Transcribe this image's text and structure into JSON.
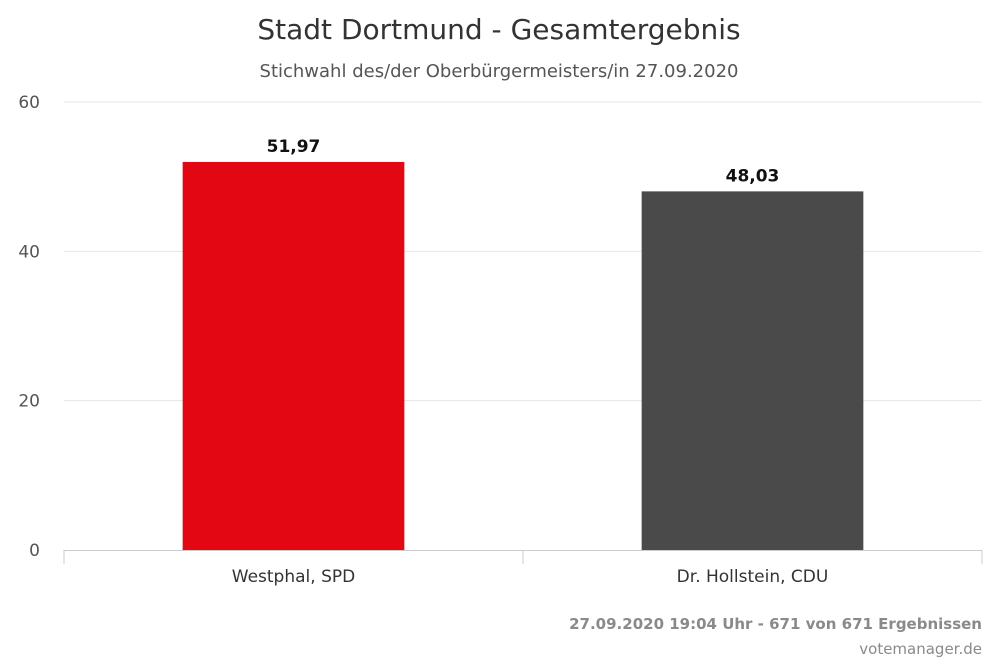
{
  "chart_data": {
    "type": "bar",
    "title": "Stadt Dortmund - Gesamtergebnis",
    "subtitle": "Stichwahl des/der Oberbürgermeisters/in 27.09.2020",
    "categories": [
      "Westphal, SPD",
      "Dr. Hollstein, CDU"
    ],
    "values": [
      51.97,
      48.03
    ],
    "data_labels": [
      "51,97",
      "48,03"
    ],
    "colors": [
      "#e30613",
      "#4a4a4a"
    ],
    "ylim": [
      0,
      60
    ],
    "yticks": [
      0,
      20,
      40,
      60
    ],
    "ytick_labels": [
      "0",
      "20",
      "40",
      "60"
    ],
    "grid": true,
    "legend": "none"
  },
  "footer": {
    "timestamp": "27.09.2020 19:04 Uhr - 671 von 671 Ergebnissen",
    "source": "votemanager.de"
  }
}
